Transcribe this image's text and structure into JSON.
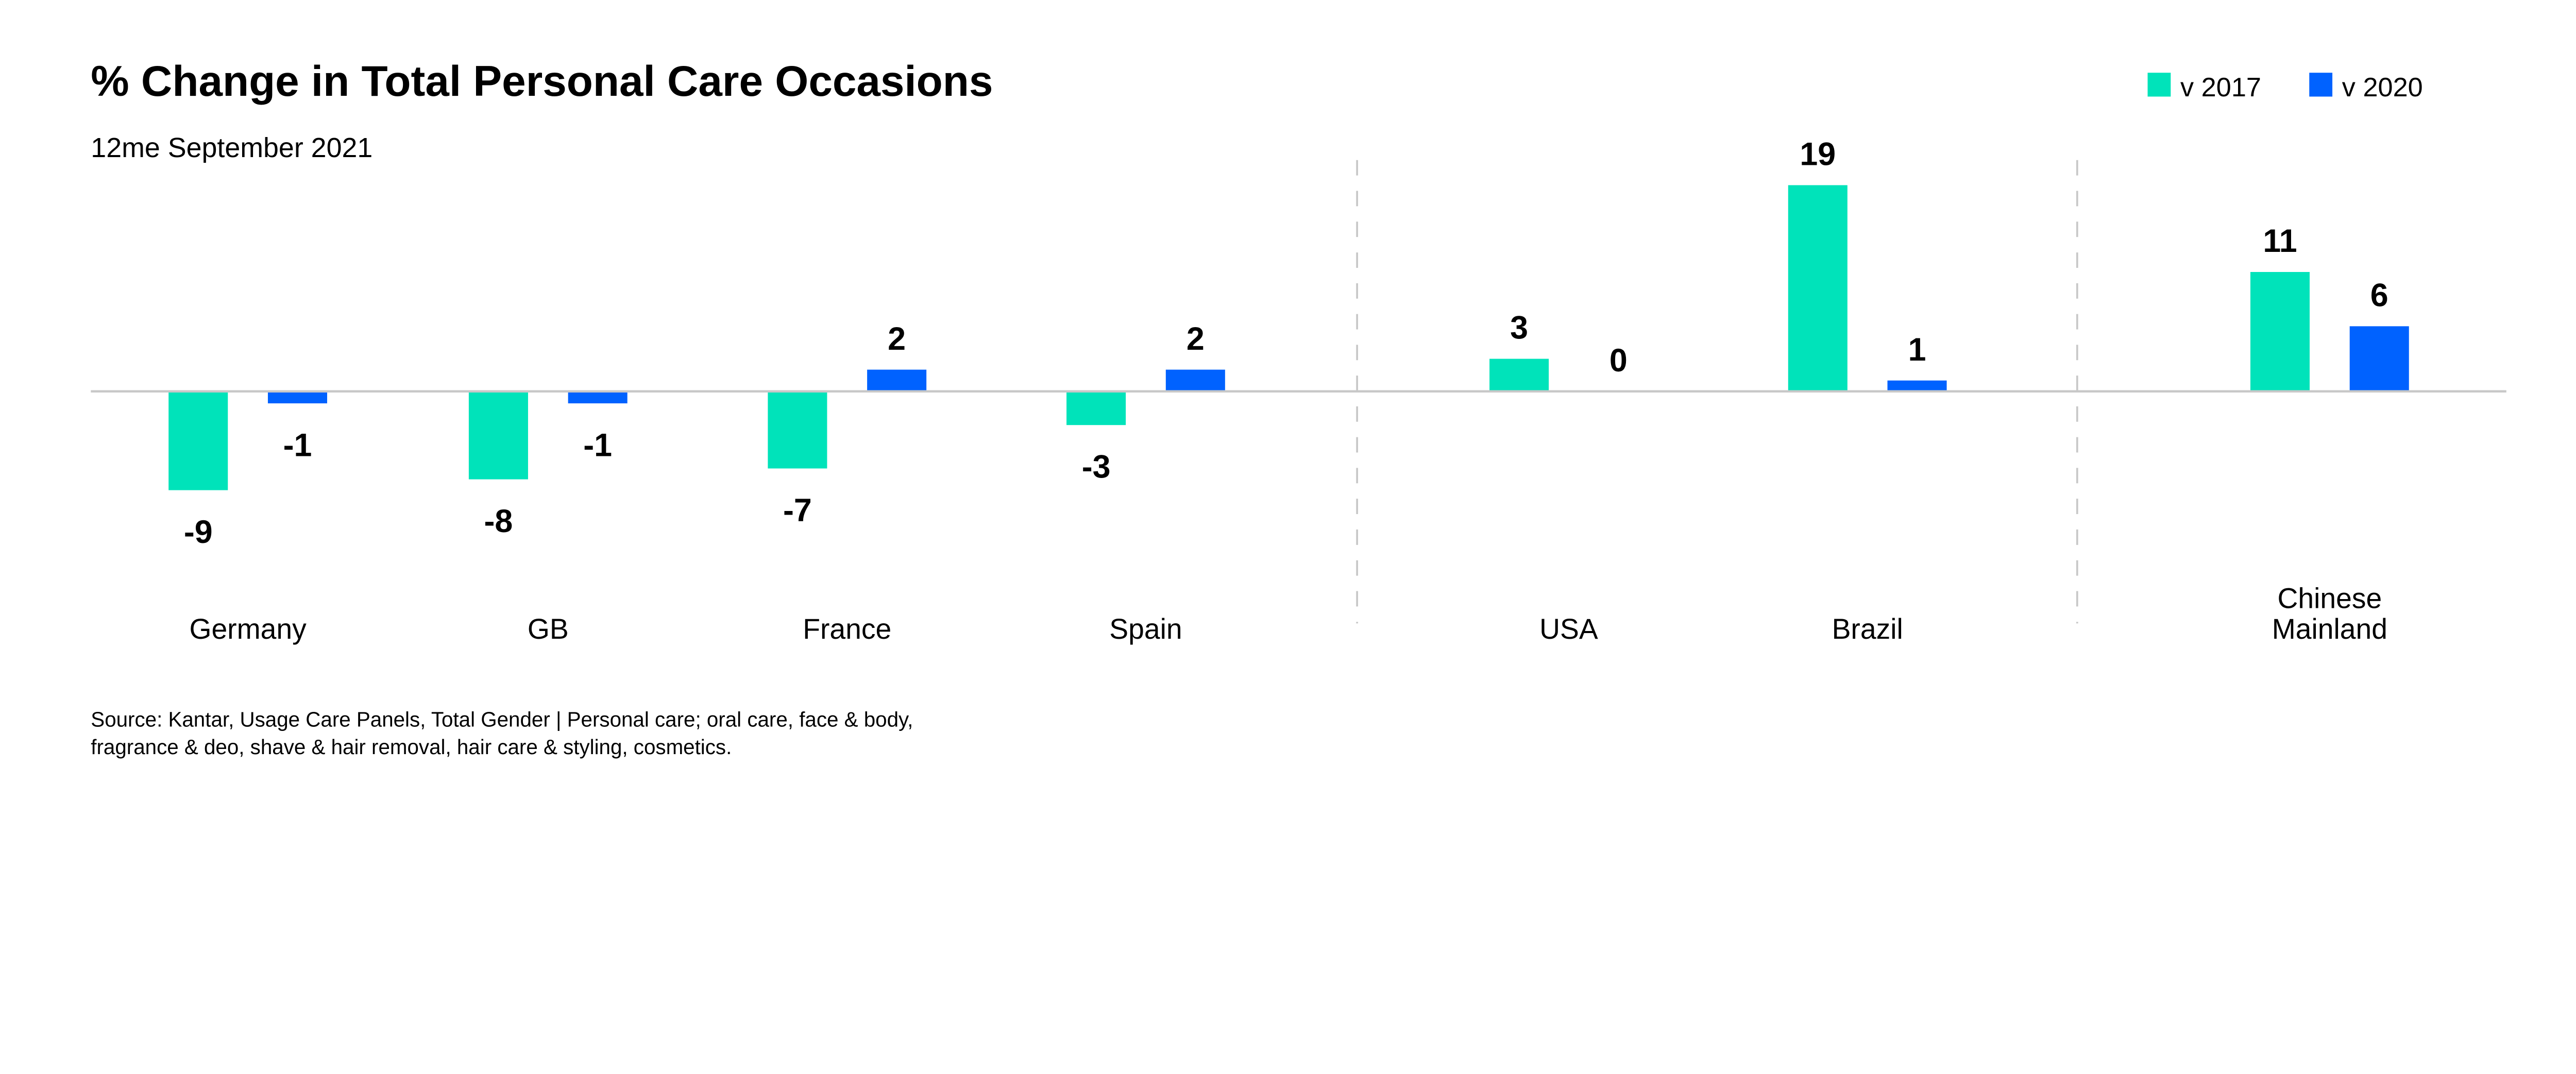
{
  "chart_data": {
    "type": "bar",
    "title": "% Change in Total Personal Care Occasions",
    "subtitle": "12me September 2021",
    "categories": [
      "Germany",
      "GB",
      "France",
      "Spain",
      "USA",
      "Brazil",
      "Chinese Mainland"
    ],
    "category_lines": [
      [
        "Germany"
      ],
      [
        "GB"
      ],
      [
        "France"
      ],
      [
        "Spain"
      ],
      [
        "USA"
      ],
      [
        "Brazil"
      ],
      [
        "Chinese",
        "Mainland"
      ]
    ],
    "series": [
      {
        "name": "v 2017",
        "color": "#00E3BA",
        "values": [
          -9,
          -8,
          -7,
          -3,
          3,
          19,
          11
        ]
      },
      {
        "name": "v 2020",
        "color": "#0062FF",
        "values": [
          -1,
          -1,
          2,
          2,
          0,
          1,
          6
        ]
      }
    ],
    "grid": false,
    "legend": "top-right",
    "group_dividers_after": [
      "Spain",
      "Brazil"
    ]
  },
  "source": [
    "Source: Kantar, Usage Care Panels, Total Gender | Personal care; oral care, face & body,",
    "fragrance & deo, shave & hair removal, hair care & styling, cosmetics."
  ]
}
